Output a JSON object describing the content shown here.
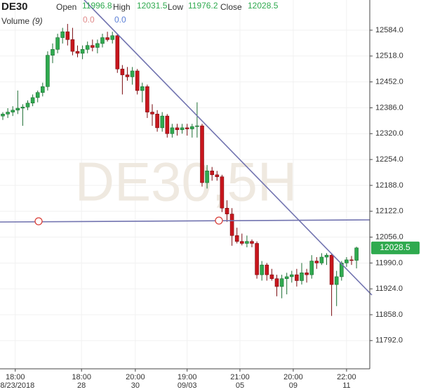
{
  "chart_data": {
    "type": "candlestick",
    "title": "DE30",
    "watermark": "DE30,5H",
    "open_label": "Open",
    "high_label": "High",
    "low_label": "Low",
    "close_label": "Close",
    "volume_label": "Volume",
    "volume_period": "(9)",
    "volume_values": [
      "0.0",
      "0.0"
    ],
    "up_color": "#2faa4f",
    "down_color": "#c8161d",
    "open": [
      12365,
      12370,
      12375,
      12380,
      12385,
      12388,
      12398,
      12412,
      12425,
      12440,
      12520,
      12535,
      12565,
      12580,
      12560,
      12530,
      12525,
      12535,
      12545,
      12540,
      12550,
      12565,
      12560,
      12570,
      12485,
      12470,
      12465,
      12480,
      12430,
      12440,
      12375,
      12370,
      12335,
      12365,
      12320,
      12335,
      12330,
      12335,
      12332,
      12338,
      12340,
      12195,
      12225,
      12215,
      12210,
      12130,
      12115,
      12060,
      12045,
      12040,
      12045,
      12040,
      11960,
      11985,
      11960,
      11950,
      11930,
      11950,
      11955,
      11960,
      11945,
      11965,
      11960,
      11995,
      11990,
      12005,
      12010,
      11935,
      11955,
      11990,
      11998,
      11996.8
    ],
    "high": [
      12375,
      12385,
      12390,
      12430,
      12395,
      12405,
      12420,
      12430,
      12450,
      12530,
      12550,
      12575,
      12590,
      12600,
      12590,
      12545,
      12545,
      12555,
      12560,
      12560,
      12575,
      12580,
      12580,
      12575,
      12495,
      12490,
      12490,
      12485,
      12450,
      12445,
      12395,
      12380,
      12375,
      12370,
      12345,
      12345,
      12345,
      12345,
      12345,
      12400,
      12345,
      12240,
      12235,
      12225,
      12215,
      12150,
      12130,
      12080,
      12065,
      12060,
      12050,
      12045,
      11995,
      11990,
      11975,
      11960,
      11960,
      11965,
      11970,
      11975,
      11990,
      11975,
      12010,
      12005,
      12015,
      12015,
      12015,
      11970,
      11995,
      12005,
      12008,
      12031.5
    ],
    "low": [
      12355,
      12360,
      12365,
      12370,
      12340,
      12380,
      12390,
      12400,
      12415,
      12430,
      12500,
      12525,
      12550,
      12545,
      12520,
      12515,
      12510,
      12525,
      12530,
      12525,
      12540,
      12555,
      12550,
      12475,
      12420,
      12455,
      12445,
      12420,
      12400,
      12360,
      12340,
      12325,
      12325,
      12310,
      12310,
      12315,
      12320,
      12315,
      12310,
      12310,
      12185,
      12180,
      12200,
      12200,
      12120,
      12095,
      12034,
      12040,
      12035,
      12030,
      12030,
      11950,
      11945,
      11945,
      11945,
      11905,
      11900,
      11910,
      11940,
      11930,
      11935,
      11940,
      11950,
      11975,
      11985,
      11985,
      11855,
      11880,
      11945,
      11980,
      11985,
      11976.2
    ],
    "close": [
      12370,
      12375,
      12380,
      12385,
      12388,
      12398,
      12412,
      12425,
      12440,
      12520,
      12535,
      12565,
      12580,
      12560,
      12530,
      12525,
      12535,
      12545,
      12540,
      12550,
      12565,
      12560,
      12570,
      12485,
      12470,
      12465,
      12480,
      12430,
      12440,
      12375,
      12370,
      12335,
      12365,
      12320,
      12335,
      12330,
      12335,
      12332,
      12338,
      12340,
      12195,
      12225,
      12215,
      12210,
      12130,
      12115,
      12060,
      12045,
      12040,
      12045,
      12040,
      11960,
      11985,
      11960,
      11950,
      11930,
      11950,
      11955,
      11960,
      11945,
      11965,
      11960,
      11995,
      11990,
      12005,
      12010,
      11935,
      11955,
      11990,
      11998,
      11996.8,
      12028.5
    ],
    "ylim": [
      11720,
      12661
    ],
    "yticks": [
      {
        "value": 11792,
        "label": "11792.0"
      },
      {
        "value": 11858,
        "label": "11858.0"
      },
      {
        "value": 11924,
        "label": "11924.0"
      },
      {
        "value": 11990,
        "label": "11990.0"
      },
      {
        "value": 12056,
        "label": "12056.0"
      },
      {
        "value": 12122,
        "label": "12122.0"
      },
      {
        "value": 12188,
        "label": "12188.0"
      },
      {
        "value": 12254,
        "label": "12254.0"
      },
      {
        "value": 12320,
        "label": "12320.0"
      },
      {
        "value": 12386,
        "label": "12386.0"
      },
      {
        "value": 12452,
        "label": "12452.0"
      },
      {
        "value": 12518,
        "label": "12518.0"
      },
      {
        "value": 12584,
        "label": "12584.0"
      }
    ],
    "xticks": [
      {
        "value": 2.5,
        "label": "18:00",
        "sublabel": "08/23/2018"
      },
      {
        "value": 15.8,
        "label": "18:00",
        "sublabel": "28"
      },
      {
        "value": 26.6,
        "label": "20:00",
        "sublabel": "30"
      },
      {
        "value": 37,
        "label": "19:00",
        "sublabel": "09/03"
      },
      {
        "value": 47.6,
        "label": "21:00",
        "sublabel": "05"
      },
      {
        "value": 58.3,
        "label": "20:00",
        "sublabel": "09"
      },
      {
        "value": 69,
        "label": "22:00",
        "sublabel": "11"
      }
    ],
    "grid": true
  }
}
